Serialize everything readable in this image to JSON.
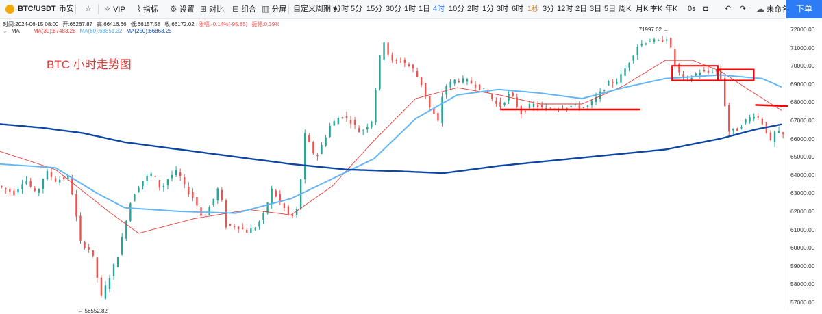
{
  "toolbar": {
    "symbol": "BTC/USDT",
    "exchange": "币安",
    "vip": "VIP",
    "indicators": "指标",
    "settings": "设置",
    "compare": "对比",
    "combine": "组合",
    "split": "分屏",
    "custom_period": "自定义周期",
    "periods": [
      "分时",
      "5分",
      "15分",
      "30分",
      "1时",
      "1日",
      "4时",
      "10分",
      "2时",
      "1分",
      "3时",
      "6时",
      "1秒",
      "3分",
      "12时",
      "2日",
      "3日",
      "5日",
      "周K",
      "月K",
      "季K",
      "年K"
    ],
    "active_period": "4时",
    "countdown": "0s",
    "layout_name": "未命名",
    "order_button": "下单",
    "icons": [
      "star-icon",
      "vip-icon",
      "indicator-icon",
      "gear-icon",
      "compare-icon",
      "combine-icon",
      "split-icon",
      "camera-icon",
      "arrow-left-icon",
      "arrow-right-icon",
      "cloud-icon"
    ]
  },
  "info": {
    "time": "时间:2024-06-15 08:00",
    "open": "开:66267.87",
    "high": "高:66416.66",
    "low": "低:66157.58",
    "close": "收:66172.02",
    "change": "涨幅:-0.14%(-95.85)",
    "amplitude": "振幅:0.39%",
    "ma_label": "MA",
    "ma30": "MA(30):67483.28",
    "ma60": "MA(60):68851.32",
    "ma250": "MA(250):66863.25"
  },
  "annotation": {
    "title": "BTC 小时走势图"
  },
  "highlights": {
    "high": "71997.02",
    "low": "56552.82"
  },
  "colors": {
    "up": "#26a69a",
    "down": "#ef5350",
    "ma30": "#e53935",
    "ma60": "#64b5f6",
    "ma250": "#0d47a1",
    "accent": "#2e7bf6",
    "mark": "#ff0000"
  },
  "chart_data": {
    "type": "candlestick",
    "ylim": [
      56550,
      72600
    ],
    "yticks": [
      "72000.00",
      "71000.00",
      "70000.00",
      "69000.00",
      "68000.00",
      "67000.00",
      "66000.00",
      "65000.00",
      "64000.00",
      "63000.00",
      "62000.00",
      "61000.00",
      "60000.00",
      "59000.00",
      "58000.00",
      "57000.00"
    ],
    "anchors": [
      [
        0,
        63400
      ],
      [
        12,
        63000
      ],
      [
        20,
        63800
      ],
      [
        28,
        62900
      ],
      [
        35,
        64200
      ],
      [
        42,
        63700
      ],
      [
        52,
        63900
      ],
      [
        60,
        60300
      ],
      [
        68,
        59800
      ],
      [
        75,
        57300
      ],
      [
        82,
        58600
      ],
      [
        88,
        59800
      ],
      [
        95,
        62300
      ],
      [
        100,
        63200
      ],
      [
        106,
        63800
      ],
      [
        112,
        64100
      ],
      [
        118,
        63200
      ],
      [
        124,
        63900
      ],
      [
        130,
        64200
      ],
      [
        136,
        63200
      ],
      [
        142,
        62700
      ],
      [
        148,
        61600
      ],
      [
        155,
        62500
      ],
      [
        160,
        63400
      ],
      [
        165,
        61200
      ],
      [
        172,
        61200
      ],
      [
        180,
        60900
      ],
      [
        186,
        61100
      ],
      [
        192,
        61800
      ],
      [
        198,
        63200
      ],
      [
        204,
        62500
      ],
      [
        212,
        61600
      ],
      [
        217,
        62200
      ],
      [
        222,
        66200
      ],
      [
        230,
        64900
      ],
      [
        240,
        66700
      ],
      [
        248,
        67300
      ],
      [
        256,
        66900
      ],
      [
        262,
        66300
      ],
      [
        270,
        67000
      ],
      [
        278,
        71600
      ],
      [
        284,
        70200
      ],
      [
        292,
        70300
      ],
      [
        300,
        69800
      ],
      [
        306,
        69000
      ],
      [
        312,
        67700
      ],
      [
        318,
        66900
      ],
      [
        322,
        68800
      ],
      [
        330,
        69200
      ],
      [
        338,
        69200
      ],
      [
        346,
        68900
      ],
      [
        354,
        68500
      ],
      [
        362,
        67700
      ],
      [
        370,
        68500
      ],
      [
        378,
        67400
      ],
      [
        386,
        67900
      ],
      [
        395,
        67600
      ],
      [
        405,
        67700
      ],
      [
        415,
        67800
      ],
      [
        425,
        67700
      ],
      [
        433,
        68300
      ],
      [
        440,
        69000
      ],
      [
        448,
        69200
      ],
      [
        455,
        70100
      ],
      [
        462,
        71100
      ],
      [
        470,
        71400
      ],
      [
        478,
        71300
      ],
      [
        484,
        71600
      ],
      [
        488,
        70200
      ],
      [
        494,
        69300
      ],
      [
        500,
        69300
      ],
      [
        506,
        69700
      ],
      [
        512,
        69600
      ],
      [
        518,
        69800
      ],
      [
        522,
        69300
      ],
      [
        528,
        66400
      ],
      [
        534,
        66500
      ],
      [
        540,
        67000
      ],
      [
        546,
        67300
      ],
      [
        550,
        67100
      ],
      [
        554,
        66600
      ],
      [
        558,
        65800
      ],
      [
        562,
        66500
      ],
      [
        565,
        66200
      ]
    ],
    "ma30": [
      [
        0,
        65300
      ],
      [
        40,
        64300
      ],
      [
        80,
        61900
      ],
      [
        100,
        60800
      ],
      [
        140,
        61600
      ],
      [
        180,
        62100
      ],
      [
        210,
        61800
      ],
      [
        240,
        63400
      ],
      [
        270,
        65900
      ],
      [
        300,
        68200
      ],
      [
        330,
        68800
      ],
      [
        360,
        68400
      ],
      [
        390,
        67900
      ],
      [
        420,
        67900
      ],
      [
        450,
        68900
      ],
      [
        480,
        70300
      ],
      [
        500,
        70300
      ],
      [
        520,
        69700
      ],
      [
        540,
        68700
      ],
      [
        565,
        67500
      ]
    ],
    "ma60": [
      [
        0,
        64600
      ],
      [
        40,
        64400
      ],
      [
        70,
        63000
      ],
      [
        90,
        62200
      ],
      [
        130,
        62000
      ],
      [
        170,
        61900
      ],
      [
        210,
        62700
      ],
      [
        240,
        63800
      ],
      [
        270,
        64900
      ],
      [
        300,
        67100
      ],
      [
        330,
        68400
      ],
      [
        360,
        68700
      ],
      [
        390,
        68500
      ],
      [
        420,
        68200
      ],
      [
        450,
        68800
      ],
      [
        480,
        69300
      ],
      [
        520,
        69500
      ],
      [
        550,
        69300
      ],
      [
        565,
        68800
      ]
    ],
    "ma250": [
      [
        0,
        66800
      ],
      [
        30,
        66600
      ],
      [
        60,
        66300
      ],
      [
        90,
        65800
      ],
      [
        130,
        65400
      ],
      [
        170,
        65000
      ],
      [
        210,
        64600
      ],
      [
        250,
        64300
      ],
      [
        290,
        64200
      ],
      [
        320,
        64100
      ],
      [
        360,
        64500
      ],
      [
        400,
        64800
      ],
      [
        440,
        65100
      ],
      [
        480,
        65400
      ],
      [
        520,
        66000
      ],
      [
        545,
        66500
      ],
      [
        565,
        66800
      ]
    ],
    "n_candles": 566
  }
}
